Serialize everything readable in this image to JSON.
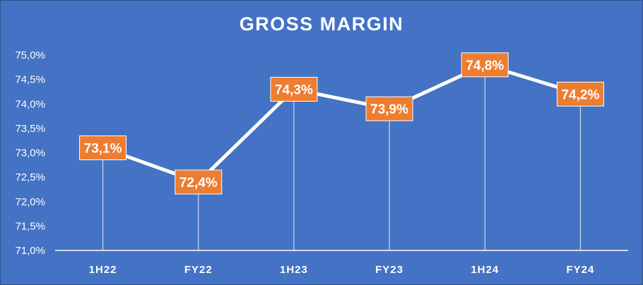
{
  "chart_data": {
    "type": "line",
    "title": "GROSS MARGIN",
    "xlabel": "",
    "ylabel": "",
    "categories": [
      "1H22",
      "FY22",
      "1H23",
      "FY23",
      "1H24",
      "FY24"
    ],
    "series": [
      {
        "values": [
          73.1,
          72.4,
          74.3,
          73.9,
          74.8,
          74.2
        ],
        "labels": [
          "73,1%",
          "72,4%",
          "74,3%",
          "73,9%",
          "74,8%",
          "74,2%"
        ]
      }
    ],
    "ylim": [
      71.0,
      75.0
    ],
    "yticks": [
      71.0,
      71.5,
      72.0,
      72.5,
      73.0,
      73.5,
      74.0,
      74.5,
      75.0
    ],
    "ytick_labels": [
      "71,0%",
      "71,5%",
      "72,0%",
      "72,5%",
      "73,0%",
      "73,5%",
      "74,0%",
      "74,5%",
      "75,0%"
    ],
    "grid": false,
    "drop_lines": true,
    "legend": "none",
    "colors": {
      "background": "#4472c4",
      "line": "#ffffff",
      "label_box": "#ed7d31",
      "text": "#ffffff"
    }
  }
}
